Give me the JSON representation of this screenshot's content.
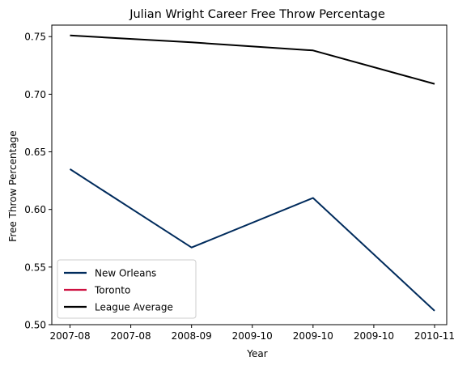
{
  "chart_data": {
    "type": "line",
    "title": "Julian Wright Career Free Throw Percentage",
    "xlabel": "Year",
    "ylabel": "Free Throw Percentage",
    "x_ticks": [
      "2007-08",
      "2007-08",
      "2008-09",
      "2009-10",
      "2009-10",
      "2009-10",
      "2010-11"
    ],
    "x_tick_values": [
      0,
      0.5,
      1,
      1.5,
      2,
      2.5,
      3
    ],
    "xlim": [
      -0.15,
      3.1
    ],
    "ylim": [
      0.5,
      0.76
    ],
    "y_ticks": [
      "0.50",
      "0.55",
      "0.60",
      "0.65",
      "0.70",
      "0.75"
    ],
    "y_tick_values": [
      0.5,
      0.55,
      0.6,
      0.65,
      0.7,
      0.75
    ],
    "grid": false,
    "legend_position": "lower-left",
    "series": [
      {
        "name": "New Orleans",
        "color": "#002B5C",
        "x": [
          0,
          1,
          2,
          3
        ],
        "y": [
          0.635,
          0.567,
          0.61,
          0.512
        ]
      },
      {
        "name": "Toronto",
        "color": "#CE1141",
        "x": [],
        "y": []
      },
      {
        "name": "League Average",
        "color": "#000000",
        "x": [
          0,
          1,
          2,
          3
        ],
        "y": [
          0.751,
          0.745,
          0.738,
          0.709
        ]
      }
    ]
  }
}
